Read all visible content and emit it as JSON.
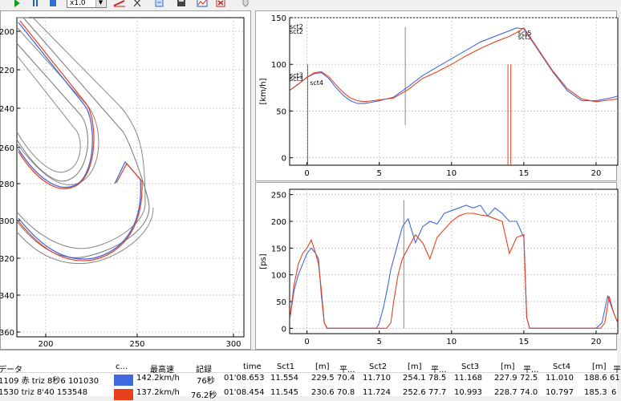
{
  "toolbar": {
    "zoom_select": "x1.0",
    "icons": [
      "play-icon",
      "pause-icon",
      "stop-icon",
      "select-dropdown",
      "red-line-icon",
      "cursor-icon",
      "export-icon",
      "save-icon",
      "chart-icon",
      "pdf-icon",
      "slider-icon"
    ]
  },
  "map": {
    "y_ticks": [
      "200",
      "220",
      "240",
      "260",
      "280",
      "300",
      "320",
      "340",
      "360"
    ],
    "x_ticks": [
      "200",
      "250",
      "300"
    ]
  },
  "speed_chart": {
    "y_label": "[km/h]",
    "y_ticks": [
      "150",
      "100",
      "50",
      "0"
    ],
    "x_ticks": [
      "0",
      "5",
      "10",
      "15",
      "20"
    ],
    "sector_labels": [
      "sct2",
      "sct2",
      "sct3",
      "sct3",
      "sct4",
      "sct5",
      "sct5"
    ]
  },
  "power_chart": {
    "y_label": "[ps]",
    "y_ticks": [
      "250",
      "200",
      "150",
      "100",
      "50",
      "0"
    ],
    "x_ticks": [
      "0",
      "5",
      "10",
      "15",
      "20"
    ]
  },
  "table": {
    "headers": [
      "データ",
      "c...",
      "最高速",
      "記録",
      "time",
      "Sct1",
      "[m]",
      "平...",
      "Sct2",
      "[m]",
      "平...",
      "Sct3",
      "[m]",
      "平...",
      "Sct4",
      "[m]",
      "平"
    ],
    "rows": [
      {
        "data": "1109 赤 triz 8秒6 101030",
        "color": "#4169e1",
        "max_speed": "142.2km/h",
        "record": "76秒",
        "time": "01'08.653",
        "sct1": "11.554",
        "m1": "229.5",
        "avg1": "70.4",
        "sct2": "11.710",
        "m2": "254.1",
        "avg2": "78.5",
        "sct3": "11.168",
        "m3": "227.9",
        "avg3": "72.5",
        "sct4": "11.010",
        "m4": "188.6",
        "avg4": "61"
      },
      {
        "data": "1530 triz 8'40 153548",
        "color": "#e8401c",
        "max_speed": "137.2km/h",
        "record": "76.2秒",
        "time": "01'08.454",
        "sct1": "11.545",
        "m1": "230.6",
        "avg1": "70.8",
        "sct2": "11.724",
        "m2": "252.6",
        "avg2": "77.7",
        "sct3": "10.993",
        "m3": "228.7",
        "avg3": "74.0",
        "sct4": "10.797",
        "m4": "185.3",
        "avg4": "6"
      }
    ]
  },
  "chart_data": [
    {
      "type": "line",
      "ylabel": "[km/h]",
      "xlim": [
        -1.2,
        21.5
      ],
      "ylim": [
        -8,
        150
      ],
      "series": [
        {
          "color": "#4169e1",
          "x": [
            -1.2,
            -0.5,
            0,
            0.5,
            1,
            1.5,
            2,
            2.5,
            3,
            3.5,
            4,
            5,
            6,
            7,
            8,
            9,
            10,
            11,
            12,
            13,
            14,
            14.5,
            15,
            16,
            17,
            18,
            19,
            20,
            21,
            21.5
          ],
          "y": [
            72,
            80,
            86,
            90,
            91,
            85,
            75,
            67,
            61,
            58,
            58,
            61,
            65,
            76,
            88,
            97,
            106,
            115,
            124,
            130,
            136,
            139,
            138,
            115,
            92,
            72,
            61,
            61,
            64,
            66
          ]
        },
        {
          "color": "#e8401c",
          "x": [
            -1.2,
            -0.5,
            0,
            0.5,
            1,
            1.5,
            2,
            2.5,
            3,
            3.5,
            4,
            5,
            6,
            7,
            8,
            9,
            10,
            11,
            12,
            13,
            14,
            14.5,
            15,
            16,
            17,
            18,
            19,
            20,
            21,
            21.5
          ],
          "y": [
            72,
            80,
            86,
            91,
            92,
            87,
            78,
            70,
            64,
            61,
            60,
            62,
            64,
            73,
            85,
            92,
            100,
            109,
            117,
            124,
            130,
            134,
            139,
            116,
            93,
            74,
            63,
            60,
            62,
            63
          ]
        }
      ]
    },
    {
      "type": "line",
      "ylabel": "[ps]",
      "xlim": [
        -1.2,
        21.5
      ],
      "ylim": [
        -10,
        260
      ],
      "series": [
        {
          "color": "#4169e1",
          "x": [
            -1.2,
            -0.9,
            -0.6,
            -0.3,
            0,
            0.3,
            0.6,
            0.8,
            1,
            1.2,
            1.4,
            1.6,
            4.8,
            5,
            5.3,
            5.6,
            5.8,
            6,
            6.3,
            6.6,
            7,
            7.5,
            8,
            8.5,
            9,
            9.5,
            10,
            10.5,
            11,
            11.5,
            12,
            12.5,
            13,
            13.5,
            14,
            14.5,
            15,
            15.2,
            15.4,
            20,
            20.4,
            20.8,
            21.2,
            21.5
          ],
          "y": [
            15,
            70,
            100,
            120,
            140,
            150,
            140,
            130,
            60,
            10,
            0,
            0,
            0,
            10,
            40,
            80,
            110,
            130,
            160,
            190,
            205,
            160,
            190,
            200,
            195,
            215,
            220,
            225,
            230,
            225,
            230,
            210,
            225,
            215,
            200,
            200,
            170,
            20,
            0,
            0,
            10,
            60,
            30,
            10
          ]
        },
        {
          "color": "#e8401c",
          "x": [
            -1.2,
            -0.9,
            -0.6,
            -0.3,
            0,
            0.3,
            0.6,
            0.8,
            1,
            1.2,
            1.4,
            1.6,
            5.5,
            5.8,
            6,
            6.3,
            6.6,
            7,
            7.5,
            8,
            8.5,
            9,
            9.5,
            10,
            10.5,
            11,
            11.5,
            12,
            12.5,
            13,
            13.5,
            14,
            14.5,
            15,
            15.2,
            15.4,
            20.3,
            20.6,
            20.9,
            21.2,
            21.5
          ],
          "y": [
            15,
            80,
            120,
            140,
            150,
            165,
            140,
            120,
            70,
            10,
            0,
            0,
            0,
            10,
            50,
            100,
            130,
            150,
            175,
            160,
            130,
            170,
            185,
            200,
            210,
            215,
            215,
            212,
            210,
            205,
            200,
            140,
            170,
            175,
            20,
            0,
            0,
            10,
            60,
            30,
            10
          ]
        }
      ]
    }
  ]
}
